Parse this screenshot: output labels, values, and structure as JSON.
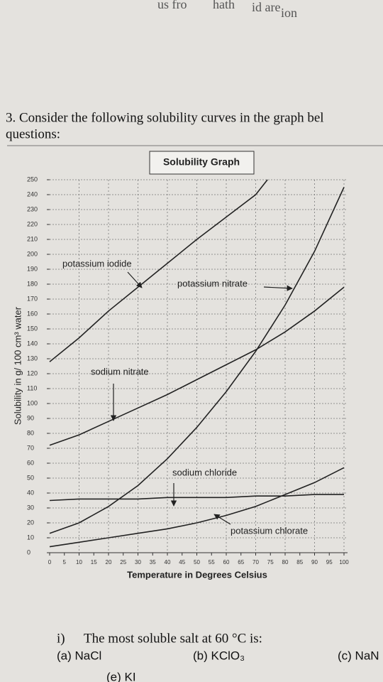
{
  "top_fragments": [
    "us fro",
    "hath",
    "id are",
    "ion"
  ],
  "question": {
    "line1": "3. Consider the following solubility curves in the graph bel",
    "line2": "questions:"
  },
  "chart_data": {
    "type": "line",
    "title": "Solubility Graph",
    "x_label": "Temperature in Degrees Celsius",
    "y_label": "Solubility in g/ 100 cm³ water",
    "xlim": [
      0,
      100
    ],
    "xticks": [
      0,
      5,
      10,
      15,
      20,
      25,
      30,
      35,
      40,
      45,
      50,
      55,
      60,
      65,
      70,
      75,
      80,
      85,
      90,
      95,
      100
    ],
    "ylim": [
      0,
      250
    ],
    "yticks": [
      0,
      10,
      20,
      30,
      40,
      50,
      60,
      70,
      80,
      90,
      100,
      110,
      120,
      130,
      140,
      150,
      160,
      170,
      180,
      190,
      200,
      210,
      220,
      230,
      240,
      250
    ],
    "grid": true,
    "series": [
      {
        "name": "potassium iodide",
        "color": "#222222",
        "x": [
          0,
          10,
          20,
          30,
          40,
          50,
          60,
          70,
          74
        ],
        "values": [
          128,
          144,
          162,
          178,
          194,
          210,
          225,
          240,
          250
        ]
      },
      {
        "name": "potassium nitrate",
        "color": "#222222",
        "x": [
          0,
          10,
          20,
          30,
          40,
          50,
          60,
          70,
          80,
          90,
          100
        ],
        "values": [
          13,
          20,
          31,
          45,
          63,
          84,
          108,
          135,
          166,
          202,
          245
        ]
      },
      {
        "name": "sodium nitrate",
        "color": "#222222",
        "x": [
          0,
          10,
          20,
          30,
          40,
          50,
          60,
          70,
          80,
          90,
          100
        ],
        "values": [
          72,
          79,
          88,
          97,
          106,
          116,
          126,
          136,
          148,
          162,
          178
        ]
      },
      {
        "name": "sodium chloride",
        "color": "#222222",
        "x": [
          0,
          10,
          20,
          30,
          40,
          50,
          60,
          70,
          80,
          90,
          100
        ],
        "values": [
          35,
          36,
          36,
          36,
          37,
          37,
          37,
          38,
          38,
          39,
          39
        ]
      },
      {
        "name": "potassium chlorate",
        "color": "#222222",
        "x": [
          0,
          10,
          20,
          30,
          40,
          50,
          60,
          70,
          80,
          90,
          100
        ],
        "values": [
          4,
          7,
          10,
          13,
          16,
          20,
          25,
          31,
          39,
          47,
          57
        ]
      }
    ]
  },
  "question_i": {
    "number": "i)",
    "text": "The most soluble salt at 60 °C is:",
    "a": "(a) NaCl",
    "b": "(b) KClO₃",
    "c": "(c) NaN",
    "e": "(e) KI"
  }
}
